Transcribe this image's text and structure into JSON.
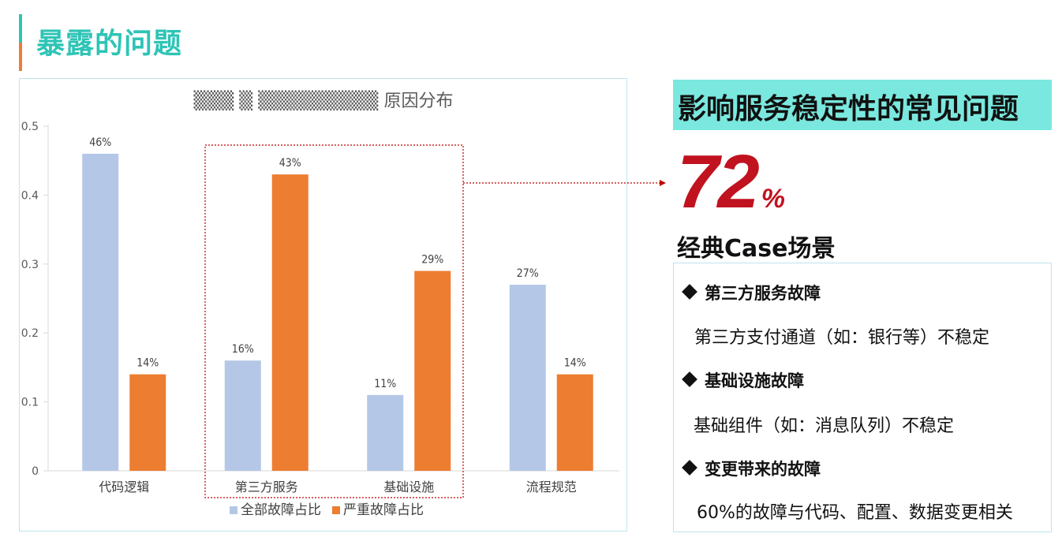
{
  "page": {
    "title": "暴露的问题"
  },
  "chart_data": {
    "type": "bar",
    "title": "▒▒▒ ▒ ▒▒▒▒▒▒▒▒▒ 原因分布",
    "categories": [
      "代码逻辑",
      "第三方服务",
      "基础设施",
      "流程规范"
    ],
    "series": [
      {
        "name": "全部故障占比",
        "color": "#b4c7e7",
        "values": [
          0.46,
          0.16,
          0.11,
          0.27
        ],
        "labels": [
          "46%",
          "16%",
          "11%",
          "27%"
        ]
      },
      {
        "name": "严重故障占比",
        "color": "#ed7d31",
        "values": [
          0.14,
          0.43,
          0.29,
          0.14
        ],
        "labels": [
          "14%",
          "43%",
          "29%",
          "14%"
        ]
      }
    ],
    "yticks": [
      "0",
      "0.1",
      "0.2",
      "0.3",
      "0.4",
      "0.5"
    ],
    "ylim": [
      0,
      0.5
    ],
    "legend_position": "bottom",
    "highlight_categories": [
      "第三方服务",
      "基础设施"
    ]
  },
  "headline": "影响服务稳定性的常见问题",
  "stat": {
    "value": "72",
    "unit": "%"
  },
  "cases": {
    "title": "经典Case场景",
    "items": [
      {
        "head": "第三方服务故障",
        "desc": "第三方支付通道（如：银行等）不稳定"
      },
      {
        "head": "基础设施故障",
        "desc": "基础组件（如：消息队列）不稳定"
      },
      {
        "head": "变更带来的故障",
        "desc": "60%的故障与代码、配置、数据变更相关"
      }
    ]
  },
  "colors": {
    "accent_teal": "#2ec4b6",
    "accent_orange": "#f07c3c",
    "stat_red": "#c1121f",
    "headline_bg": "#7ae8de"
  }
}
